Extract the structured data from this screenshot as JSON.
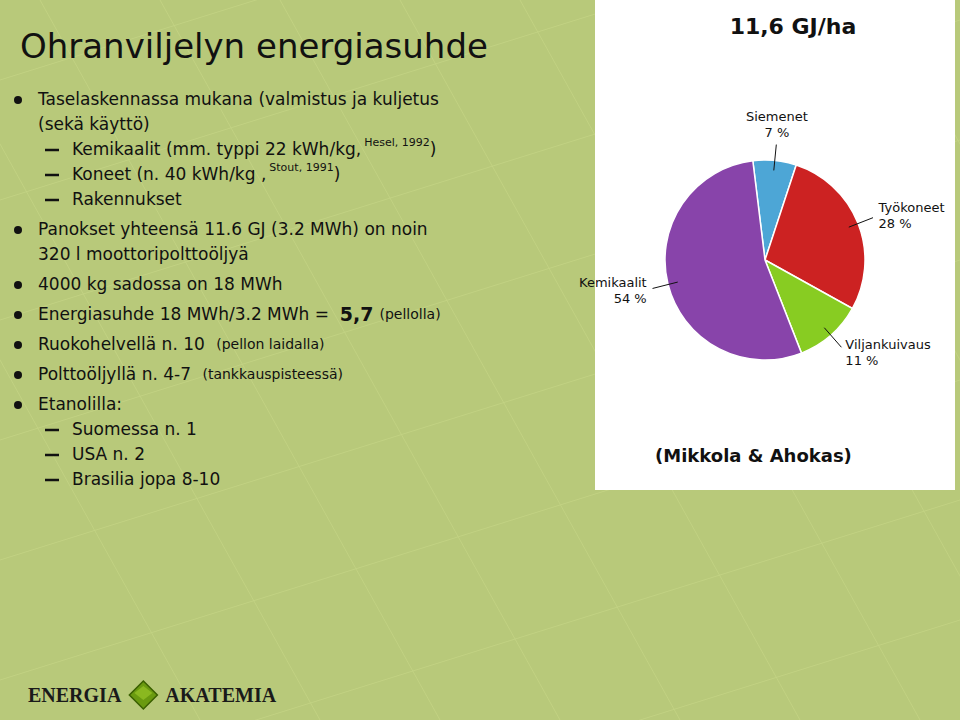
{
  "chart_data": {
    "type": "pie",
    "title": "Ohranviljelyn energiasuhde",
    "subtitle": "11,6 GJ/ha",
    "categories": [
      "Siemenet",
      "Työkoneet",
      "Viljankuivaus",
      "Kemikaalit"
    ],
    "values": [
      7,
      28,
      11,
      54
    ],
    "value_labels": [
      "7 %",
      "28 %",
      "11 %",
      "54 %"
    ],
    "data_labels": true,
    "colors": [
      "#4da6d6",
      "#cc2222",
      "#88cc22",
      "#8844aa"
    ],
    "annotations": [
      [
        "Taselaskennassa mukana (valmistus ja kuljetus"
      ],
      [
        "(sekä käyttö)"
      ],
      [
        "Kemikaalit (mm. typpi 22 kWh/kg,",
        "Hesel, 1992",
        ")"
      ],
      [
        "Koneet (n. 40 kWh/kg ,",
        "Stout, 1991",
        ")"
      ],
      [
        "Rakennukset"
      ],
      [
        "Panokset yhteensä 11.6 GJ (3.2 MWh) on noin"
      ],
      [
        "320 l moottoripolttoöljyä"
      ],
      [
        "4000 kg sadossa on 18 MWh"
      ],
      [
        "Energiasuhde 18 MWh/3.2 MWh =  ",
        "5,7",
        "(pellolla)"
      ],
      [
        "Ruokohelvellä n. 10 ",
        "(pellon laidalla)"
      ],
      [
        "Polttoöljyllä n. 4-7 ",
        "(tankkauspisteessä)"
      ],
      [
        "Etanolilla:"
      ],
      [
        "Suomessa n. 1"
      ],
      [
        "USA n. 2"
      ],
      [
        "Brasilia jopa 8-10"
      ],
      [
        "(Mikkola & Ahokas)"
      ],
      [
        "ENERGIA",
        "AKATEMIA"
      ]
    ]
  }
}
